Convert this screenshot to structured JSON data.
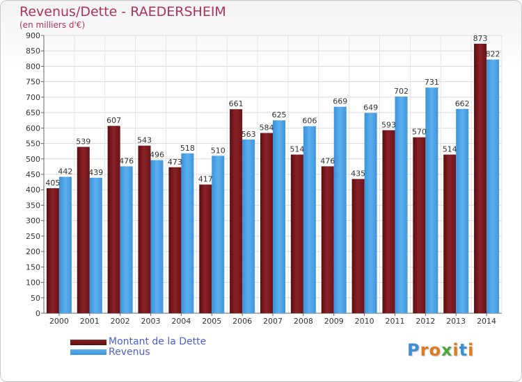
{
  "header": {
    "title": "Revenus/Dette - RAEDERSHEIM",
    "subtitle": "(en milliers d'€)"
  },
  "colors": {
    "dette": "#7a1a1e",
    "revenus": "#4aa3e6",
    "title": "#b03060",
    "legend_text": "#4f5fd0"
  },
  "chart_data": {
    "type": "bar",
    "title": "Revenus/Dette - RAEDERSHEIM",
    "subtitle": "(en milliers d'€)",
    "categories": [
      "2000",
      "2001",
      "2002",
      "2003",
      "2004",
      "2005",
      "2006",
      "2007",
      "2008",
      "2009",
      "2010",
      "2011",
      "2012",
      "2013",
      "2014"
    ],
    "series": [
      {
        "name": "Montant de la Dette",
        "values": [
          405,
          539,
          607,
          543,
          473,
          417,
          661,
          584,
          514,
          476,
          435,
          593,
          570,
          514,
          873
        ]
      },
      {
        "name": "Revenus",
        "values": [
          442,
          439,
          476,
          496,
          518,
          510,
          563,
          625,
          606,
          669,
          649,
          702,
          731,
          662,
          822
        ]
      }
    ],
    "ylim": [
      0,
      900
    ],
    "yticks": [
      0,
      50,
      100,
      150,
      200,
      250,
      300,
      350,
      400,
      450,
      500,
      550,
      600,
      650,
      700,
      750,
      800,
      850,
      900
    ],
    "grid": true,
    "legend_position": "bottom-left"
  },
  "legend": {
    "items": [
      {
        "label": "Montant de la Dette"
      },
      {
        "label": "Revenus"
      }
    ]
  },
  "logo": {
    "text": "Proxiti",
    "letters": [
      "P",
      "r",
      "o",
      "x",
      "i",
      "t",
      "i"
    ],
    "colors": [
      "#3b8fd9",
      "#e07a1f",
      "#e07a1f",
      "#4aa83a",
      "#e07a1f",
      "#3b8fd9",
      "#e07a1f"
    ]
  }
}
